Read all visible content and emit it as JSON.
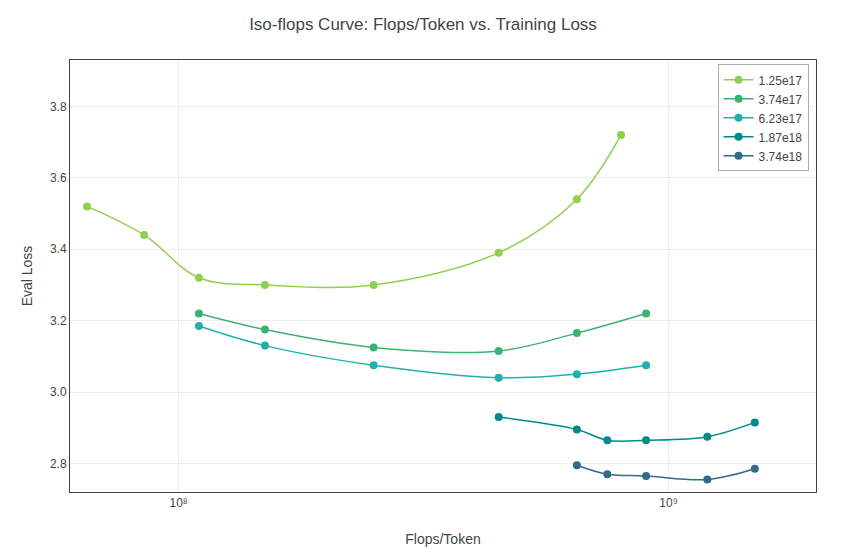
{
  "chart_data": {
    "type": "scatter",
    "title": "Iso-flops Curve: Flops/Token vs. Training Loss",
    "xlabel": "Flops/Token",
    "ylabel": "Eval Loss",
    "log": "x",
    "xlim": [
      60000000.0,
      2000000000.0
    ],
    "ylim": [
      2.72,
      3.93
    ],
    "xticks": [
      {
        "value": 100000000.0,
        "label": "10⁸"
      },
      {
        "value": 1000000000.0,
        "label": "10⁹"
      }
    ],
    "yticks": [
      2.8,
      {
        "value": 3.0,
        "label": "3.0"
      },
      3.2,
      3.4,
      3.6,
      3.8
    ],
    "grid": true,
    "legend": "upper right",
    "marker": "circle",
    "line_style": "solid",
    "series": [
      {
        "name": "1.25e17",
        "color": "#8FD14F",
        "x": [
          65000000.0,
          85000000.0,
          110000000.0,
          150000000.0,
          250000000.0,
          450000000.0,
          650000000.0,
          800000000.0
        ],
        "values": [
          3.52,
          3.44,
          3.32,
          3.3,
          3.3,
          3.39,
          3.54,
          3.72
        ]
      },
      {
        "name": "3.74e17",
        "color": "#3CB371",
        "x": [
          110000000.0,
          150000000.0,
          250000000.0,
          450000000.0,
          650000000.0,
          900000000.0
        ],
        "values": [
          3.22,
          3.175,
          3.125,
          3.115,
          3.165,
          3.22
        ]
      },
      {
        "name": "6.23e17",
        "color": "#20B2AA",
        "x": [
          110000000.0,
          150000000.0,
          250000000.0,
          450000000.0,
          650000000.0,
          900000000.0
        ],
        "values": [
          3.185,
          3.13,
          3.075,
          3.04,
          3.05,
          3.075
        ]
      },
      {
        "name": "1.87e18",
        "color": "#008B8B",
        "x": [
          450000000.0,
          650000000.0,
          750000000.0,
          900000000.0,
          1200000000.0,
          1500000000.0
        ],
        "values": [
          2.93,
          2.895,
          2.865,
          2.865,
          2.875,
          2.915
        ]
      },
      {
        "name": "3.74e18",
        "color": "#2F6B8A",
        "x": [
          650000000.0,
          750000000.0,
          900000000.0,
          1200000000.0,
          1500000000.0
        ],
        "values": [
          2.795,
          2.77,
          2.765,
          2.755,
          2.785
        ]
      }
    ]
  }
}
